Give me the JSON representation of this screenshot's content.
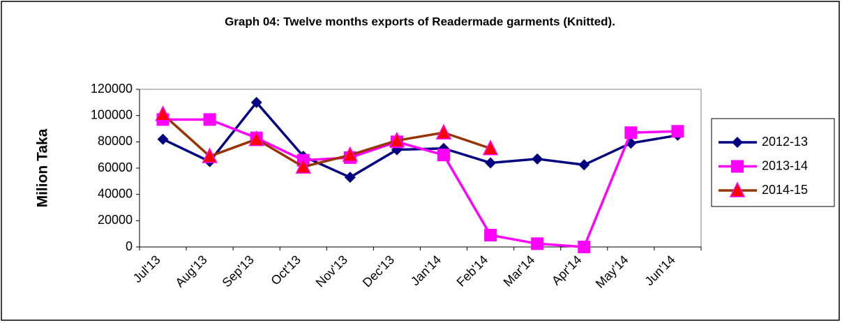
{
  "chart_data": {
    "type": "line",
    "title": "Graph 04: Twelve months exports of Readermade garments (Knitted).",
    "y_label": "Milion Taka",
    "categories": [
      "Jul'13",
      "Aug'13",
      "Sep'13",
      "Oct'13",
      "Nov'13",
      "Dec'13",
      "Jan'14",
      "Feb'14",
      "Mar'14",
      "Apr'14",
      "May'14",
      "Jun'14"
    ],
    "series": [
      {
        "name": "2012-13",
        "color": "#000080",
        "marker": "diamond",
        "marker_color": "#000080",
        "values": [
          82000,
          65000,
          110000,
          69000,
          53000,
          74000,
          75000,
          64000,
          67000,
          62500,
          79000,
          85000
        ]
      },
      {
        "name": "2013-14",
        "color": "#ff00ff",
        "marker": "square",
        "marker_color": "#ff00ff",
        "values": [
          97000,
          97000,
          83000,
          66000,
          68000,
          80000,
          70000,
          9000,
          2500,
          0,
          87000,
          88000
        ]
      },
      {
        "name": "2014-15",
        "color": "#993300",
        "marker": "triangle",
        "marker_color": "#ff0000",
        "values": [
          101000,
          69000,
          82000,
          61000,
          70000,
          81000,
          87000,
          75000,
          null,
          null,
          null,
          null
        ]
      }
    ],
    "ylim": [
      0,
      120000
    ],
    "yticks": [
      0,
      20000,
      40000,
      60000,
      80000,
      100000,
      120000
    ],
    "grid": false,
    "legend": "right"
  }
}
